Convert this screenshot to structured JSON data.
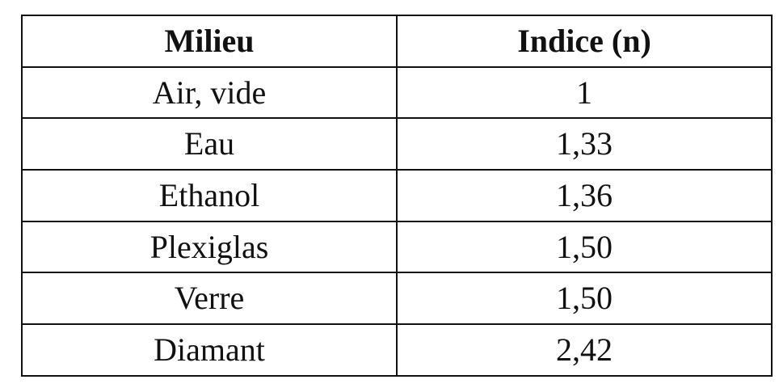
{
  "table": {
    "headers": [
      "Milieu",
      "Indice (n)"
    ],
    "rows": [
      [
        "Air, vide",
        "1"
      ],
      [
        "Eau",
        "1,33"
      ],
      [
        "Ethanol",
        "1,36"
      ],
      [
        "Plexiglas",
        "1,50"
      ],
      [
        "Verre",
        "1,50"
      ],
      [
        "Diamant",
        "2,42"
      ]
    ]
  }
}
